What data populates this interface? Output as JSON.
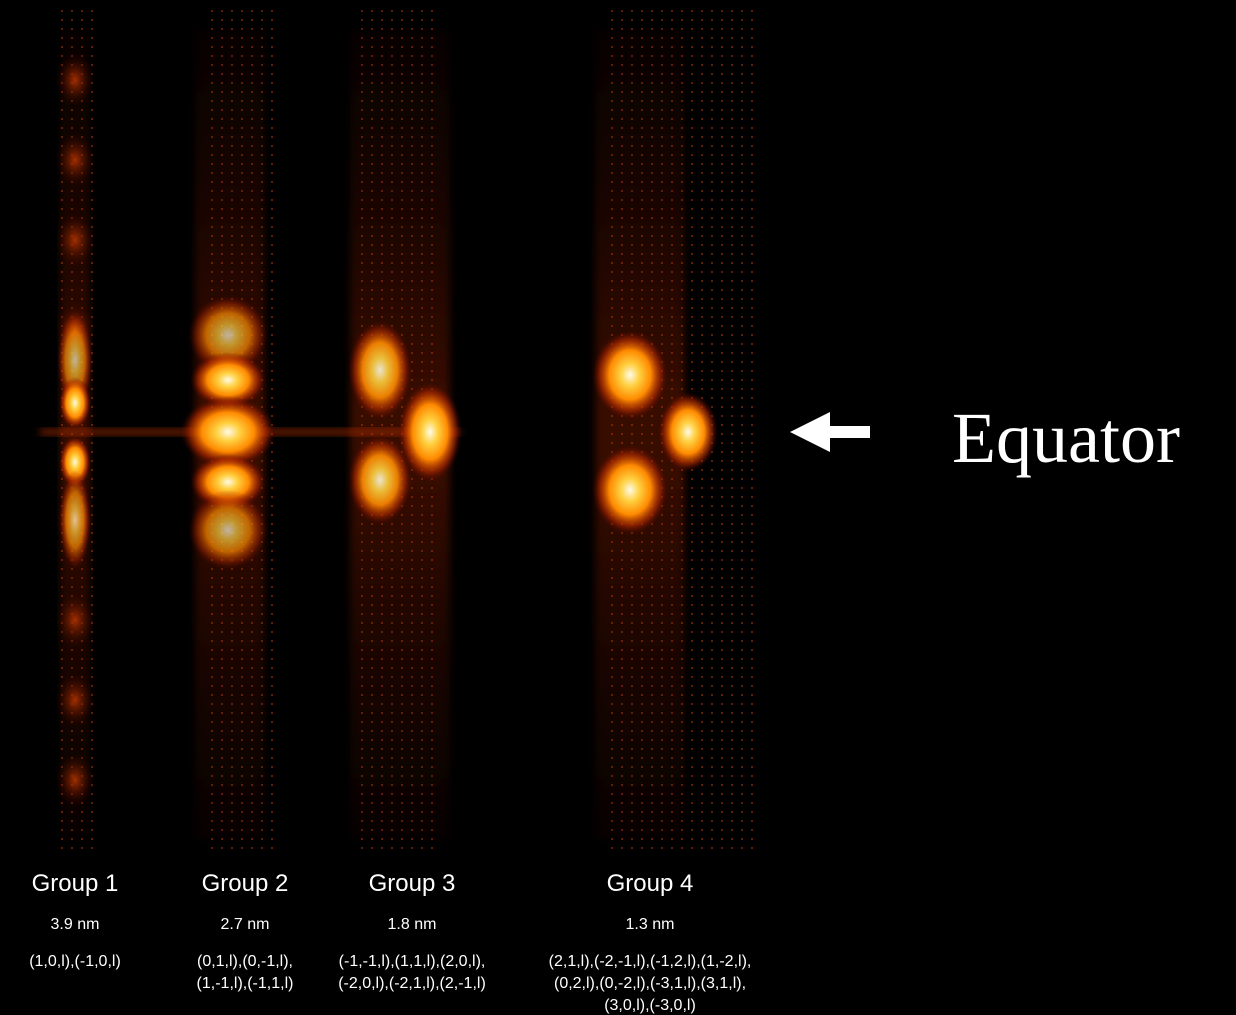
{
  "groups": [
    {
      "name": "Group 1",
      "spacing": "3.9 nm",
      "indices": [
        "(1,0,l),(-1,0,l)"
      ]
    },
    {
      "name": "Group 2",
      "spacing": "2.7 nm",
      "indices": [
        "(0,1,l),(0,-1,l),",
        "(1,-1,l),(-1,1,l)"
      ]
    },
    {
      "name": "Group 3",
      "spacing": "1.8 nm",
      "indices": [
        "(-1,-1,l),(1,1,l),(2,0,l),",
        "(-2,0,l),(-2,1,l),(2,-1,l)"
      ]
    },
    {
      "name": "Group 4",
      "spacing": "1.3 nm",
      "indices": [
        "(2,1,l),(-2,-1,l),(-1,2,l),(1,-2,l),",
        "(0,2,l),(0,-2,l),(-3,1,l),(3,1,l),",
        "(3,0,l),(-3,0,l)"
      ]
    }
  ],
  "equator_label": "Equator"
}
